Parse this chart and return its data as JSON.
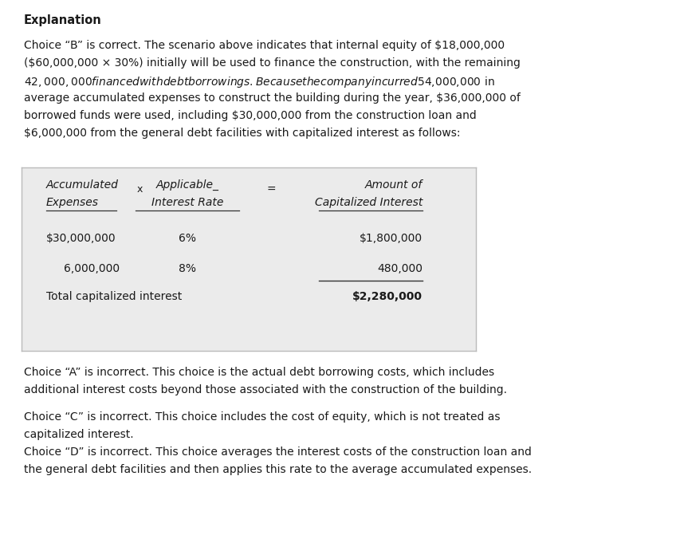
{
  "title": "Explanation",
  "page_bg": "#ffffff",
  "table_bg": "#ebebeb",
  "paragraph1_lines": [
    "Choice “B” is correct. The scenario above indicates that internal equity of $18,000,000",
    "($60,000,000 × 30%) initially will be used to finance the construction, with the remaining",
    "$42,000,000 financed with debt borrowings. Because the company incurred $54,000,000 in",
    "average accumulated expenses to construct the building during the year, $36,000,000 of",
    "borrowed funds were used, including $30,000,000 from the construction loan and",
    "$6,000,000 from the general debt facilities with capitalized interest as follows:"
  ],
  "table": {
    "col1_h1": "Accumulated",
    "col1_h2": "Expenses",
    "col2_h1": "Applicable_",
    "col2_h2": "Interest Rate",
    "col3_h1": "Amount of",
    "col3_h2": "Capitalized Interest",
    "op_x": "x",
    "op_eq": "=",
    "row1": [
      "$30,000,000",
      "6%",
      "$1,800,000"
    ],
    "row2": [
      "6,000,000",
      "8%",
      "480,000"
    ],
    "total_label": "Total capitalized interest",
    "total_value": "$2,280,000"
  },
  "paragraph2_lines": [
    "Choice “A” is incorrect. This choice is the actual debt borrowing costs, which includes",
    "additional interest costs beyond those associated with the construction of the building."
  ],
  "paragraph3_lines": [
    "Choice “C” is incorrect. This choice includes the cost of equity, which is not treated as",
    "capitalized interest."
  ],
  "paragraph4_lines": [
    "Choice “D” is incorrect. This choice averages the interest costs of the construction loan and",
    "the general debt facilities and then applies this rate to the average accumulated expenses."
  ],
  "font_size_title": 10.5,
  "font_size_body": 10.0,
  "font_size_table": 10.0,
  "text_color": "#1a1a1a"
}
